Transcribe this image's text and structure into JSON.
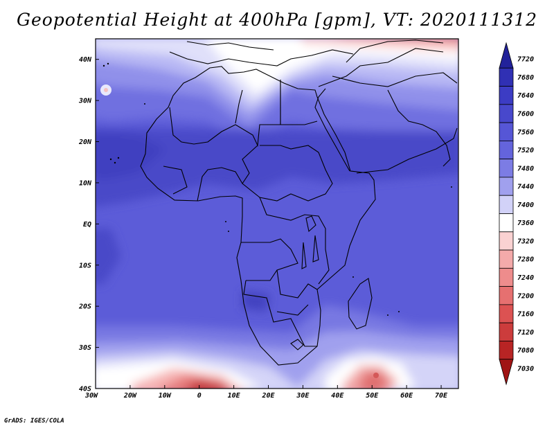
{
  "title": "Geopotential Height at 400hPa [gpm], VT: 2020111312",
  "footer": "GrADS: IGES/COLA",
  "map": {
    "lat_labels": [
      "40N",
      "30N",
      "20N",
      "10N",
      "EQ",
      "10S",
      "20S",
      "30S",
      "40S"
    ],
    "lon_labels": [
      "30W",
      "20W",
      "10W",
      "0",
      "10E",
      "20E",
      "30E",
      "40E",
      "50E",
      "60E",
      "70E"
    ],
    "lat_range": [
      -40,
      45
    ],
    "lon_range": [
      -30,
      75
    ]
  },
  "colorbar": {
    "levels": [
      "7720",
      "7680",
      "7640",
      "7600",
      "7560",
      "7520",
      "7480",
      "7440",
      "7400",
      "7360",
      "7320",
      "7280",
      "7240",
      "7200",
      "7160",
      "7120",
      "7080",
      "7030"
    ],
    "colors": [
      "#22229a",
      "#3030b4",
      "#3c3cc4",
      "#4848cc",
      "#5656d6",
      "#6464dc",
      "#7c7ce4",
      "#a0a0ee",
      "#d2d2f8",
      "#ffffff",
      "#fad2d2",
      "#f4aaaa",
      "#ee8c8c",
      "#e67070",
      "#dc5252",
      "#cc3c3c",
      "#b82424",
      "#a01414"
    ]
  }
}
